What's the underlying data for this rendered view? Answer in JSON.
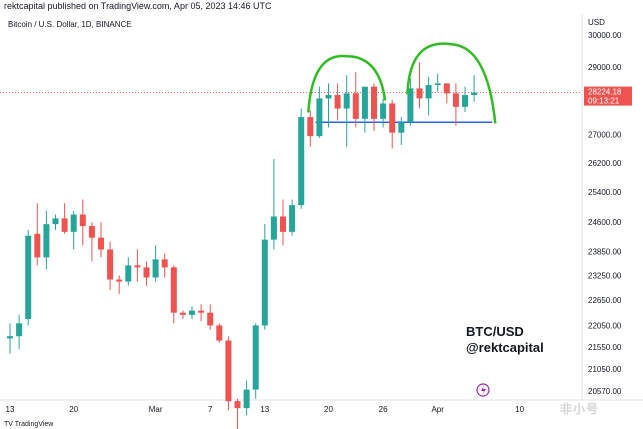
{
  "header": {
    "publisher_line": "rektcapital published on TradingView.com, Apr 05, 2023 14:46 UTC",
    "symbol_line": "Bitcoin / U.S. Dollar, 1D, BINANCE"
  },
  "watermark": "非小号",
  "bottom_logo": "TV TradingView",
  "chart_data": {
    "type": "candlestick",
    "title": "",
    "symbol": "BTC/USD",
    "interval": "1D",
    "exchange": "BINANCE",
    "currency_label": "USD",
    "y_axis": {
      "ticks": [
        30000,
        29000,
        28000,
        27000,
        26200,
        25400,
        24600,
        23850,
        23250,
        22650,
        22050,
        21550,
        21050,
        20570
      ],
      "tick_labels": [
        "30000.00",
        "29000.00",
        "28000.00",
        "27000.00",
        "26200.00",
        "25400.00",
        "24600.00",
        "23850.00",
        "23250.00",
        "22650.00",
        "22050.00",
        "21550.00",
        "21050.00",
        "20570.00"
      ],
      "scale": "log"
    },
    "x_axis": {
      "tick_labels": [
        "13",
        "20",
        "Mar",
        "7",
        "13",
        "20",
        "26",
        "Apr",
        "10"
      ]
    },
    "last_price": {
      "label": "28224.18",
      "countdown": "09:13:21",
      "value": 28224.18,
      "color": "#ef5350"
    },
    "annotation_text": [
      "BTC/USD",
      "@rektcapital"
    ],
    "support_line": {
      "price": 27350,
      "color": "#2962ff"
    },
    "arc_color": "#2ebd22",
    "up_color": "#26a69a",
    "down_color": "#ef5350",
    "candles": [
      {
        "date": "2023-02-13",
        "o": 21750,
        "h": 22100,
        "l": 21400,
        "c": 21800
      },
      {
        "date": "2023-02-14",
        "o": 21800,
        "h": 22300,
        "l": 21500,
        "c": 22100
      },
      {
        "date": "2023-02-15",
        "o": 22200,
        "h": 24400,
        "l": 22050,
        "c": 24250
      },
      {
        "date": "2023-02-16",
        "o": 24300,
        "h": 25100,
        "l": 23500,
        "c": 23700
      },
      {
        "date": "2023-02-17",
        "o": 23700,
        "h": 24900,
        "l": 23400,
        "c": 24550
      },
      {
        "date": "2023-02-18",
        "o": 24550,
        "h": 24800,
        "l": 24400,
        "c": 24700
      },
      {
        "date": "2023-02-19",
        "o": 24700,
        "h": 25100,
        "l": 24300,
        "c": 24350
      },
      {
        "date": "2023-02-20",
        "o": 24350,
        "h": 24900,
        "l": 23900,
        "c": 24800
      },
      {
        "date": "2023-02-21",
        "o": 24800,
        "h": 25200,
        "l": 24000,
        "c": 24500
      },
      {
        "date": "2023-02-22",
        "o": 24500,
        "h": 24600,
        "l": 23600,
        "c": 24200
      },
      {
        "date": "2023-02-23",
        "o": 24200,
        "h": 24600,
        "l": 23700,
        "c": 23900
      },
      {
        "date": "2023-02-24",
        "o": 23900,
        "h": 24100,
        "l": 22900,
        "c": 23150
      },
      {
        "date": "2023-02-25",
        "o": 23150,
        "h": 23250,
        "l": 22800,
        "c": 23100
      },
      {
        "date": "2023-02-26",
        "o": 23100,
        "h": 23700,
        "l": 23000,
        "c": 23500
      },
      {
        "date": "2023-02-27",
        "o": 23500,
        "h": 23900,
        "l": 23100,
        "c": 23450
      },
      {
        "date": "2023-02-28",
        "o": 23450,
        "h": 23600,
        "l": 23000,
        "c": 23200
      },
      {
        "date": "2023-03-01",
        "o": 23200,
        "h": 24000,
        "l": 23100,
        "c": 23650
      },
      {
        "date": "2023-03-02",
        "o": 23650,
        "h": 23800,
        "l": 23200,
        "c": 23450
      },
      {
        "date": "2023-03-03",
        "o": 23450,
        "h": 23500,
        "l": 22100,
        "c": 22350
      },
      {
        "date": "2023-03-04",
        "o": 22350,
        "h": 22400,
        "l": 22200,
        "c": 22300
      },
      {
        "date": "2023-03-05",
        "o": 22300,
        "h": 22500,
        "l": 22200,
        "c": 22400
      },
      {
        "date": "2023-03-06",
        "o": 22400,
        "h": 22550,
        "l": 22150,
        "c": 22350
      },
      {
        "date": "2023-03-07",
        "o": 22350,
        "h": 22550,
        "l": 21950,
        "c": 22050
      },
      {
        "date": "2023-03-08",
        "o": 22050,
        "h": 22100,
        "l": 21650,
        "c": 21700
      },
      {
        "date": "2023-03-09",
        "o": 21700,
        "h": 21800,
        "l": 20150,
        "c": 20350
      },
      {
        "date": "2023-03-10",
        "o": 20350,
        "h": 20400,
        "l": 19600,
        "c": 20200
      },
      {
        "date": "2023-03-11",
        "o": 20200,
        "h": 20800,
        "l": 20050,
        "c": 20600
      },
      {
        "date": "2023-03-12",
        "o": 20600,
        "h": 22100,
        "l": 20400,
        "c": 22050
      },
      {
        "date": "2023-03-13",
        "o": 22050,
        "h": 24550,
        "l": 21950,
        "c": 24150
      },
      {
        "date": "2023-03-14",
        "o": 24150,
        "h": 26300,
        "l": 23900,
        "c": 24750
      },
      {
        "date": "2023-03-15",
        "o": 24750,
        "h": 25200,
        "l": 24000,
        "c": 24350
      },
      {
        "date": "2023-03-16",
        "o": 24350,
        "h": 25200,
        "l": 24250,
        "c": 25050
      },
      {
        "date": "2023-03-17",
        "o": 25050,
        "h": 27750,
        "l": 24950,
        "c": 27500
      },
      {
        "date": "2023-03-18",
        "o": 27500,
        "h": 27700,
        "l": 26650,
        "c": 26950
      },
      {
        "date": "2023-03-19",
        "o": 26950,
        "h": 28400,
        "l": 26900,
        "c": 28050
      },
      {
        "date": "2023-03-20",
        "o": 28050,
        "h": 28500,
        "l": 27200,
        "c": 28150
      },
      {
        "date": "2023-03-21",
        "o": 28150,
        "h": 28500,
        "l": 27400,
        "c": 27750
      },
      {
        "date": "2023-03-22",
        "o": 27750,
        "h": 28750,
        "l": 26650,
        "c": 28200
      },
      {
        "date": "2023-03-23",
        "o": 28200,
        "h": 28850,
        "l": 27200,
        "c": 27450
      },
      {
        "date": "2023-03-24",
        "o": 27450,
        "h": 28350,
        "l": 27050,
        "c": 28400
      },
      {
        "date": "2023-03-25",
        "o": 28400,
        "h": 28500,
        "l": 27100,
        "c": 27450
      },
      {
        "date": "2023-03-26",
        "o": 27450,
        "h": 28050,
        "l": 27200,
        "c": 27900
      },
      {
        "date": "2023-03-27",
        "o": 27900,
        "h": 28000,
        "l": 26600,
        "c": 27050
      },
      {
        "date": "2023-03-28",
        "o": 27050,
        "h": 27500,
        "l": 26700,
        "c": 27350
      },
      {
        "date": "2023-03-29",
        "o": 27350,
        "h": 28650,
        "l": 27250,
        "c": 28350
      },
      {
        "date": "2023-03-30",
        "o": 28350,
        "h": 29150,
        "l": 27750,
        "c": 28050
      },
      {
        "date": "2023-03-31",
        "o": 28050,
        "h": 28700,
        "l": 27550,
        "c": 28450
      },
      {
        "date": "2023-04-01",
        "o": 28450,
        "h": 28800,
        "l": 28250,
        "c": 28500
      },
      {
        "date": "2023-04-02",
        "o": 28500,
        "h": 28500,
        "l": 27900,
        "c": 28200
      },
      {
        "date": "2023-04-03",
        "o": 28200,
        "h": 28500,
        "l": 27250,
        "c": 27800
      },
      {
        "date": "2023-04-04",
        "o": 27800,
        "h": 28400,
        "l": 27650,
        "c": 28150
      },
      {
        "date": "2023-04-05",
        "o": 28150,
        "h": 28750,
        "l": 27950,
        "c": 28224.18
      }
    ]
  }
}
